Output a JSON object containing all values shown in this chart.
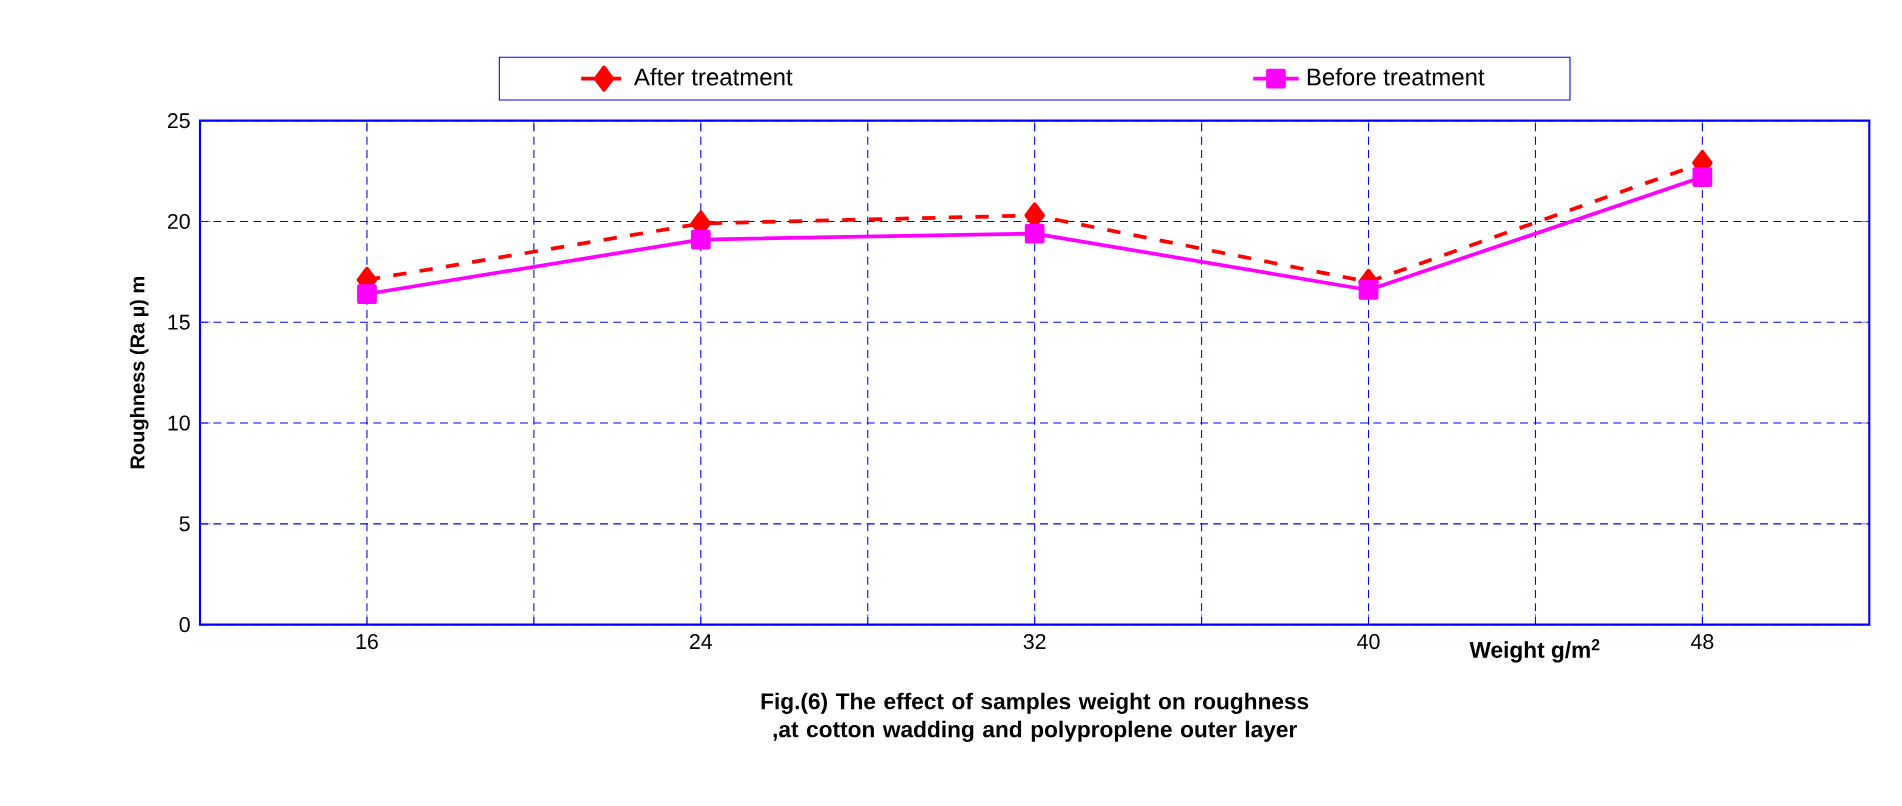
{
  "chart_data": {
    "type": "line",
    "xlabel": "Weight g/m$^{2}$",
    "ylabel": "Roughness (Ra µ) m",
    "annotations": [
      "Fig.(6) The effect of samples weight on roughness ,at cotton wadding and polyproplene outer layer"
    ],
    "x": [
      16,
      24,
      32,
      40,
      48
    ],
    "series": [
      {
        "name": "After treatment",
        "color": "#ff0000",
        "values": [
          17.1,
          19.9,
          20.3,
          17.0,
          22.9
        ],
        "marker": "diamond",
        "line_style": "dashed"
      },
      {
        "name": "Before treatment",
        "color": "#ff00ff",
        "values": [
          16.4,
          19.1,
          19.4,
          16.6,
          22.2
        ],
        "marker": "square",
        "line_style": "solid"
      }
    ],
    "xlim": [
      12,
      52
    ],
    "xticks": [
      16,
      {
        "value": 20,
        "label": null
      },
      24,
      {
        "value": 28,
        "label": null
      },
      32,
      {
        "value": 36,
        "label": null
      },
      40,
      {
        "value": 44,
        "label": null
      },
      48
    ],
    "ylim": [
      0,
      25
    ],
    "yticks": [
      0,
      5,
      10,
      15,
      20,
      25
    ],
    "grid": true,
    "legend": "top"
  }
}
